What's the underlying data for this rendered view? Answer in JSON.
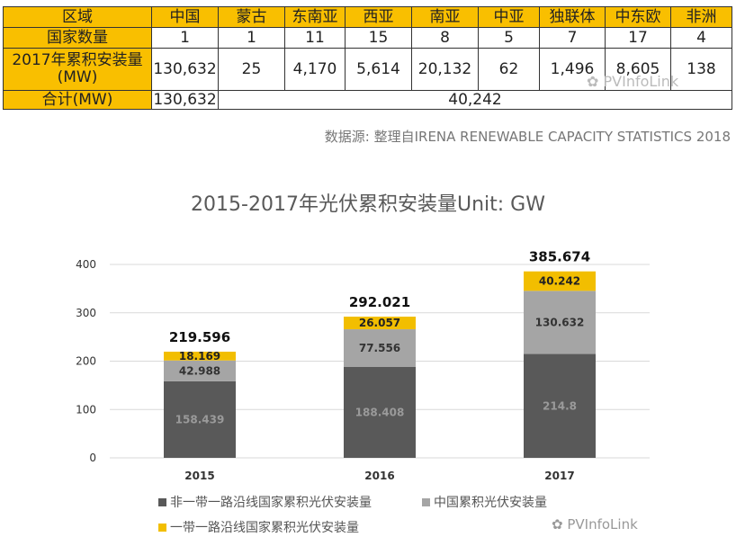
{
  "table": {
    "header": [
      "区域",
      "中国",
      "蒙古",
      "东南亚",
      "西亚",
      "南亚",
      "中亚",
      "独联体",
      "中东欧",
      "非洲"
    ],
    "count_label": "国家数量",
    "counts": [
      "1",
      "1",
      "11",
      "15",
      "8",
      "5",
      "7",
      "17",
      "4"
    ],
    "capacity_label_line1": "2017年累积安装量",
    "capacity_label_line2": "(MW)",
    "capacity": [
      "130,632",
      "25",
      "4,170",
      "5,614",
      "20,132",
      "62",
      "1,496",
      "8,605",
      "138"
    ],
    "total_label": "合计(MW)",
    "total_china": "130,632",
    "total_others": "40,242"
  },
  "source": "数据源: 整理自IRENA RENEWABLE CAPACITY STATISTICS 2018",
  "watermark": "PVInfoLink",
  "chart_data": {
    "type": "bar",
    "stacked": true,
    "title": "2015-2017年光伏累积安装量Unit: GW",
    "categories": [
      "2015",
      "2016",
      "2017"
    ],
    "ylim": [
      0,
      400
    ],
    "yticks": [
      0,
      100,
      200,
      300,
      400
    ],
    "grid": true,
    "legend_position": "bottom",
    "series": [
      {
        "name": "非一带一路沿线国家累积光伏安装量",
        "values": [
          158.439,
          188.408,
          214.8
        ],
        "color": "#595959",
        "label_color": "#9a9a9a"
      },
      {
        "name": "中国累积光伏安装量",
        "values": [
          42.988,
          77.556,
          130.632
        ],
        "color": "#a5a5a5",
        "label_color": "#333333"
      },
      {
        "name": "一带一路沿线国家累积光伏安装量",
        "values": [
          18.169,
          26.057,
          40.242
        ],
        "color": "#f2be00",
        "label_color": "#222222"
      }
    ],
    "totals": [
      219.596,
      292.021,
      385.674
    ]
  }
}
